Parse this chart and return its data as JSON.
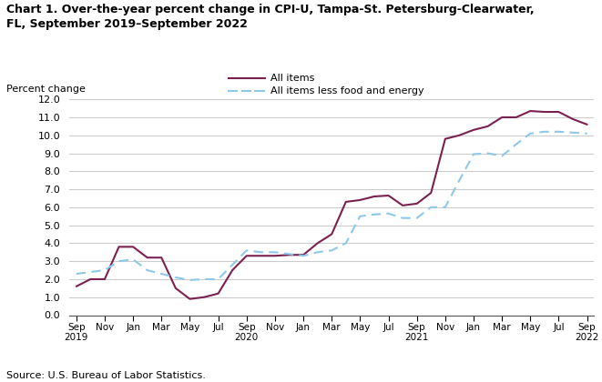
{
  "title": "Chart 1. Over-the-year percent change in CPI-U, Tampa-St. Petersburg-Clearwater,\nFL, September 2019–September 2022",
  "ylabel": "Percent change",
  "source": "Source: U.S. Bureau of Labor Statistics.",
  "legend_1": "All items",
  "legend_2": "All items less food and energy",
  "all_items_color": "#7b2150",
  "all_items_less_color": "#8ec8e8",
  "all_items_monthly": [
    1.6,
    2.0,
    2.0,
    3.8,
    3.8,
    3.2,
    3.2,
    1.5,
    0.9,
    1.0,
    1.2,
    2.5,
    3.3,
    3.3,
    3.3,
    3.35,
    3.35,
    4.0,
    4.5,
    6.3,
    6.4,
    6.6,
    6.65,
    6.1,
    6.2,
    6.8,
    9.8,
    10.0,
    10.3,
    10.5,
    11.0,
    11.0,
    11.35,
    11.3,
    11.3,
    10.9,
    10.6
  ],
  "all_items_less_monthly": [
    2.3,
    2.4,
    2.5,
    3.0,
    3.1,
    2.5,
    2.3,
    2.1,
    1.95,
    2.0,
    2.0,
    2.8,
    3.6,
    3.5,
    3.5,
    3.4,
    3.3,
    3.5,
    3.6,
    4.0,
    5.5,
    5.6,
    5.65,
    5.4,
    5.4,
    6.0,
    6.0,
    7.5,
    8.95,
    9.0,
    8.85,
    9.5,
    10.1,
    10.2,
    10.2,
    10.15,
    10.1
  ],
  "xtick_labels": [
    "Sep\n2019",
    "Nov",
    "Jan",
    "Mar",
    "May",
    "Jul",
    "Sep\n2020",
    "Nov",
    "Jan",
    "Mar",
    "May",
    "Jul",
    "Sep\n2021",
    "Nov",
    "Jan",
    "Mar",
    "May",
    "Jul",
    "Sep\n2022"
  ],
  "ylim": [
    0.0,
    12.0
  ],
  "yticks": [
    0.0,
    1.0,
    2.0,
    3.0,
    4.0,
    5.0,
    6.0,
    7.0,
    8.0,
    9.0,
    10.0,
    11.0,
    12.0
  ]
}
